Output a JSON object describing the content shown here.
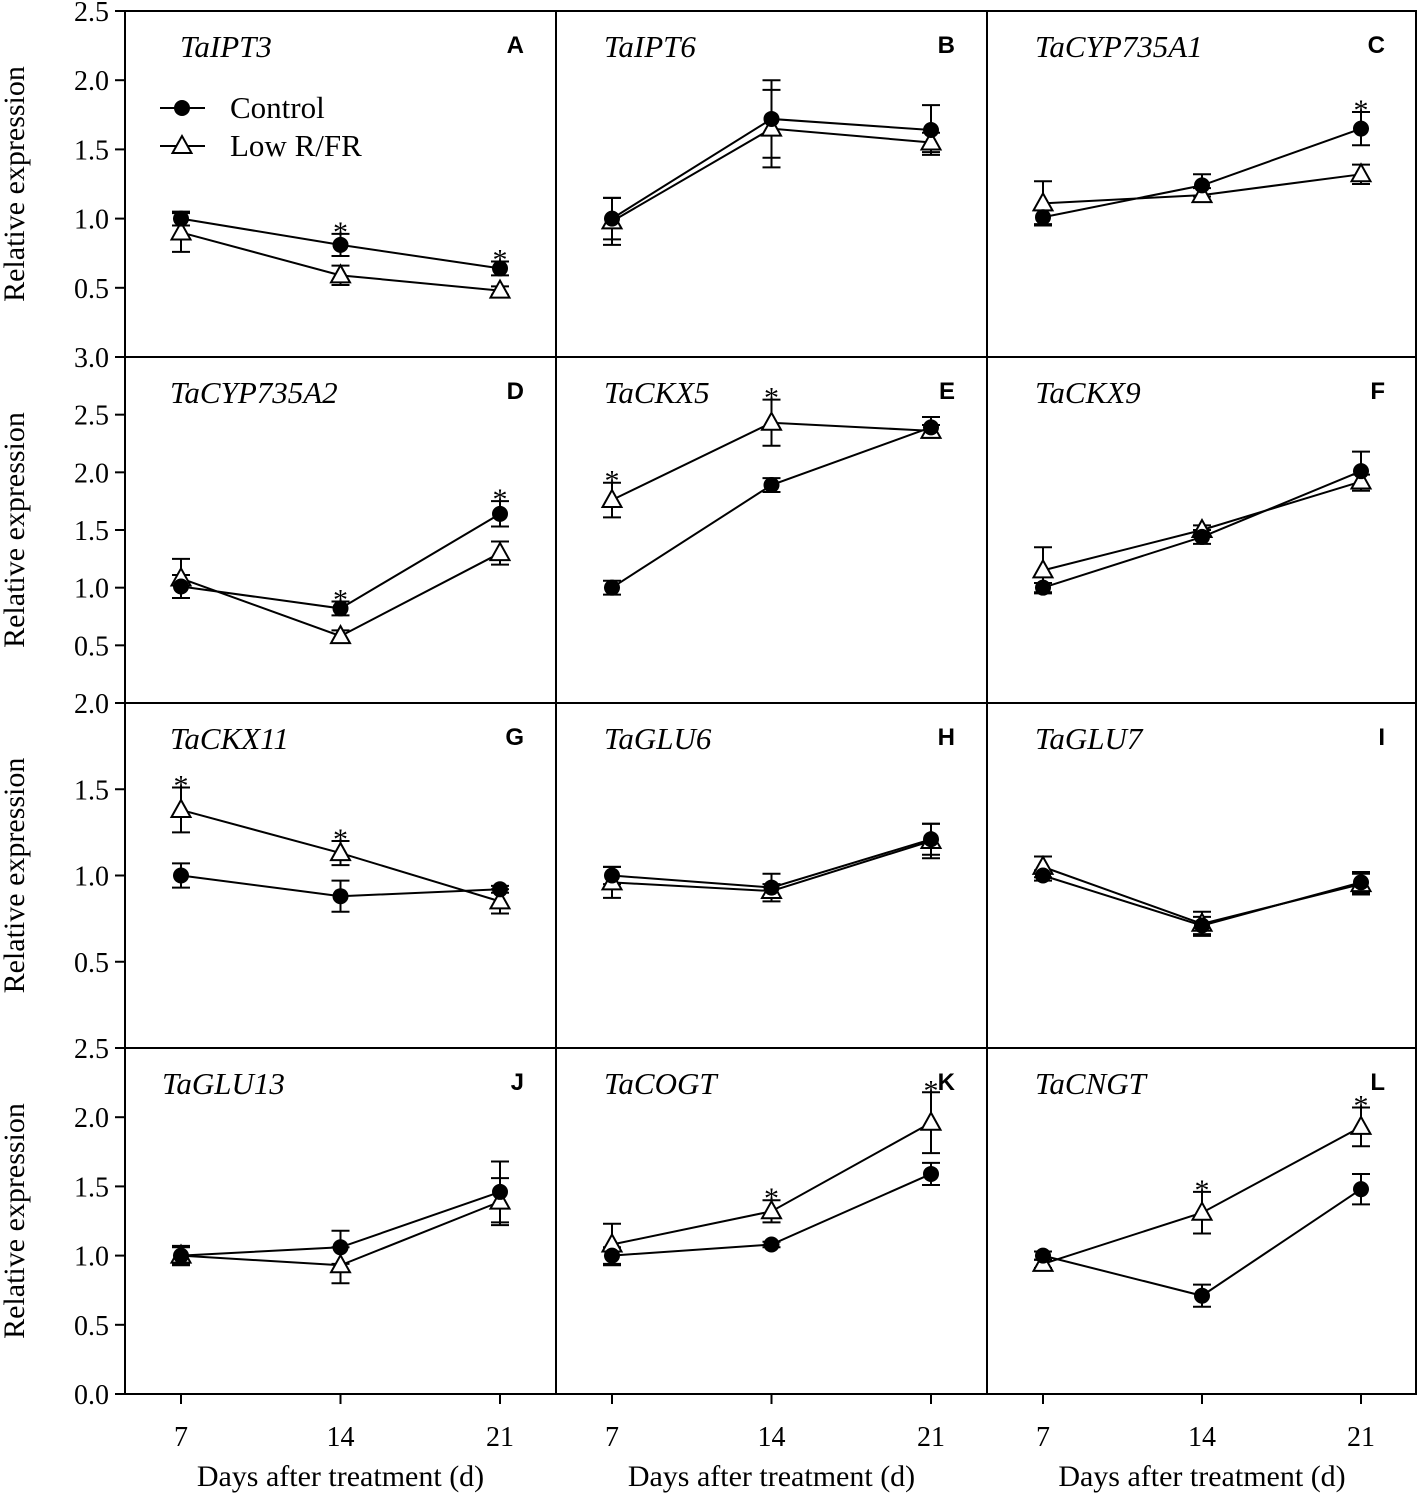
{
  "chart_data": {
    "type": "line",
    "xlabel": "Days after treatment (d)",
    "ylabel": "Relative expression",
    "x": [
      7,
      14,
      21
    ],
    "x_tick_labels": [
      "7",
      "14",
      "21"
    ],
    "legend": [
      "Control",
      "Low R/FR"
    ],
    "rows": [
      {
        "ylim": [
          0.0,
          2.5
        ],
        "ticks": [
          0.5,
          1.0,
          1.5,
          2.0,
          2.5
        ],
        "tick_labels": [
          "0.5",
          "1.0",
          "1.5",
          "2.0",
          "2.5"
        ]
      },
      {
        "ylim": [
          0.0,
          3.0
        ],
        "ticks": [
          0.5,
          1.0,
          1.5,
          2.0,
          2.5,
          3.0
        ],
        "tick_labels": [
          "0.5",
          "1.0",
          "1.5",
          "2.0",
          "2.5",
          "3.0"
        ]
      },
      {
        "ylim": [
          0.0,
          2.0
        ],
        "ticks": [
          0.5,
          1.0,
          1.5,
          2.0
        ],
        "tick_labels": [
          "0.5",
          "1.0",
          "1.5",
          "2.0"
        ]
      },
      {
        "ylim": [
          0.0,
          2.5
        ],
        "ticks": [
          0.0,
          0.5,
          1.0,
          1.5,
          2.0,
          2.5
        ],
        "tick_labels": [
          "0.0",
          "0.5",
          "1.0",
          "1.5",
          "2.0",
          "2.5"
        ]
      }
    ],
    "panels": [
      {
        "letter": "A",
        "gene": "TaIPT3",
        "row": 0,
        "col": 0,
        "series": [
          {
            "name": "Control",
            "values": [
              1.0,
              0.81,
              0.64
            ],
            "errors": [
              0.05,
              0.08,
              0.05
            ]
          },
          {
            "name": "Low R/FR",
            "values": [
              0.9,
              0.59,
              0.48
            ],
            "errors": [
              0.14,
              0.07,
              0.03
            ]
          }
        ],
        "significant": [
          "14",
          "21"
        ]
      },
      {
        "letter": "B",
        "gene": "TaIPT6",
        "row": 0,
        "col": 1,
        "series": [
          {
            "name": "Control",
            "values": [
              1.0,
              1.72,
              1.64
            ],
            "errors": [
              0.15,
              0.28,
              0.18
            ]
          },
          {
            "name": "Low R/FR",
            "values": [
              0.98,
              1.65,
              1.55
            ],
            "errors": [
              0.17,
              0.28,
              0.07
            ]
          }
        ],
        "significant": []
      },
      {
        "letter": "C",
        "gene": "TaCYP735A1",
        "row": 0,
        "col": 2,
        "series": [
          {
            "name": "Control",
            "values": [
              1.01,
              1.24,
              1.65
            ],
            "errors": [
              0.05,
              0.08,
              0.12
            ]
          },
          {
            "name": "Low R/FR",
            "values": [
              1.11,
              1.17,
              1.32
            ],
            "errors": [
              0.16,
              0.05,
              0.07
            ]
          }
        ],
        "significant": [
          "21"
        ]
      },
      {
        "letter": "D",
        "gene": "TaCYP735A2",
        "row": 1,
        "col": 0,
        "series": [
          {
            "name": "Control",
            "values": [
              1.01,
              0.82,
              1.64
            ],
            "errors": [
              0.1,
              0.06,
              0.11
            ]
          },
          {
            "name": "Low R/FR",
            "values": [
              1.08,
              0.58,
              1.3
            ],
            "errors": [
              0.17,
              0.05,
              0.1
            ]
          }
        ],
        "significant": [
          "14",
          "21"
        ]
      },
      {
        "letter": "E",
        "gene": "TaCKX5",
        "row": 1,
        "col": 1,
        "series": [
          {
            "name": "Control",
            "values": [
              1.0,
              1.89,
              2.39
            ],
            "errors": [
              0.06,
              0.06,
              0.09
            ]
          },
          {
            "name": "Low R/FR",
            "values": [
              1.76,
              2.43,
              2.36
            ],
            "errors": [
              0.15,
              0.2,
              0.05
            ]
          }
        ],
        "significant": [
          "7",
          "14"
        ]
      },
      {
        "letter": "F",
        "gene": "TaCKX9",
        "row": 1,
        "col": 2,
        "series": [
          {
            "name": "Control",
            "values": [
              1.0,
              1.44,
              2.01
            ],
            "errors": [
              0.04,
              0.06,
              0.17
            ]
          },
          {
            "name": "Low R/FR",
            "values": [
              1.15,
              1.5,
              1.92
            ],
            "errors": [
              0.2,
              0.04,
              0.06
            ]
          }
        ],
        "significant": []
      },
      {
        "letter": "G",
        "gene": "TaCKX11",
        "row": 2,
        "col": 0,
        "series": [
          {
            "name": "Control",
            "values": [
              1.0,
              0.88,
              0.92
            ],
            "errors": [
              0.07,
              0.09,
              0.02
            ]
          },
          {
            "name": "Low R/FR",
            "values": [
              1.38,
              1.13,
              0.85
            ],
            "errors": [
              0.13,
              0.07,
              0.07
            ]
          }
        ],
        "significant": [
          "7",
          "14"
        ]
      },
      {
        "letter": "H",
        "gene": "TaGLU6",
        "row": 2,
        "col": 1,
        "series": [
          {
            "name": "Control",
            "values": [
              1.0,
              0.93,
              1.21
            ],
            "errors": [
              0.05,
              0.08,
              0.09
            ]
          },
          {
            "name": "Low R/FR",
            "values": [
              0.96,
              0.91,
              1.2
            ],
            "errors": [
              0.09,
              0.04,
              0.1
            ]
          }
        ],
        "significant": []
      },
      {
        "letter": "I",
        "gene": "TaGLU7",
        "row": 2,
        "col": 2,
        "series": [
          {
            "name": "Control",
            "values": [
              1.0,
              0.71,
              0.96
            ],
            "errors": [
              0.03,
              0.05,
              0.06
            ]
          },
          {
            "name": "Low R/FR",
            "values": [
              1.05,
              0.72,
              0.95
            ],
            "errors": [
              0.06,
              0.07,
              0.06
            ]
          }
        ],
        "significant": []
      },
      {
        "letter": "J",
        "gene": "TaGLU13",
        "row": 3,
        "col": 0,
        "series": [
          {
            "name": "Control",
            "values": [
              1.0,
              1.06,
              1.46
            ],
            "errors": [
              0.06,
              0.12,
              0.22
            ]
          },
          {
            "name": "Low R/FR",
            "values": [
              1.0,
              0.93,
              1.39
            ],
            "errors": [
              0.07,
              0.13,
              0.17
            ]
          }
        ],
        "significant": []
      },
      {
        "letter": "K",
        "gene": "TaCOGT",
        "row": 3,
        "col": 1,
        "series": [
          {
            "name": "Control",
            "values": [
              1.0,
              1.08,
              1.59
            ],
            "errors": [
              0.06,
              0.02,
              0.08
            ]
          },
          {
            "name": "Low R/FR",
            "values": [
              1.08,
              1.32,
              1.96
            ],
            "errors": [
              0.15,
              0.08,
              0.22
            ]
          }
        ],
        "significant": [
          "14",
          "21"
        ]
      },
      {
        "letter": "L",
        "gene": "TaCNGT",
        "row": 3,
        "col": 2,
        "series": [
          {
            "name": "Control",
            "values": [
              1.0,
              0.71,
              1.48
            ],
            "errors": [
              0.03,
              0.08,
              0.11
            ]
          },
          {
            "name": "Low R/FR",
            "values": [
              0.94,
              1.31,
              1.93
            ],
            "errors": [
              0.03,
              0.15,
              0.14
            ]
          }
        ],
        "significant": [
          "14",
          "21"
        ]
      }
    ]
  }
}
